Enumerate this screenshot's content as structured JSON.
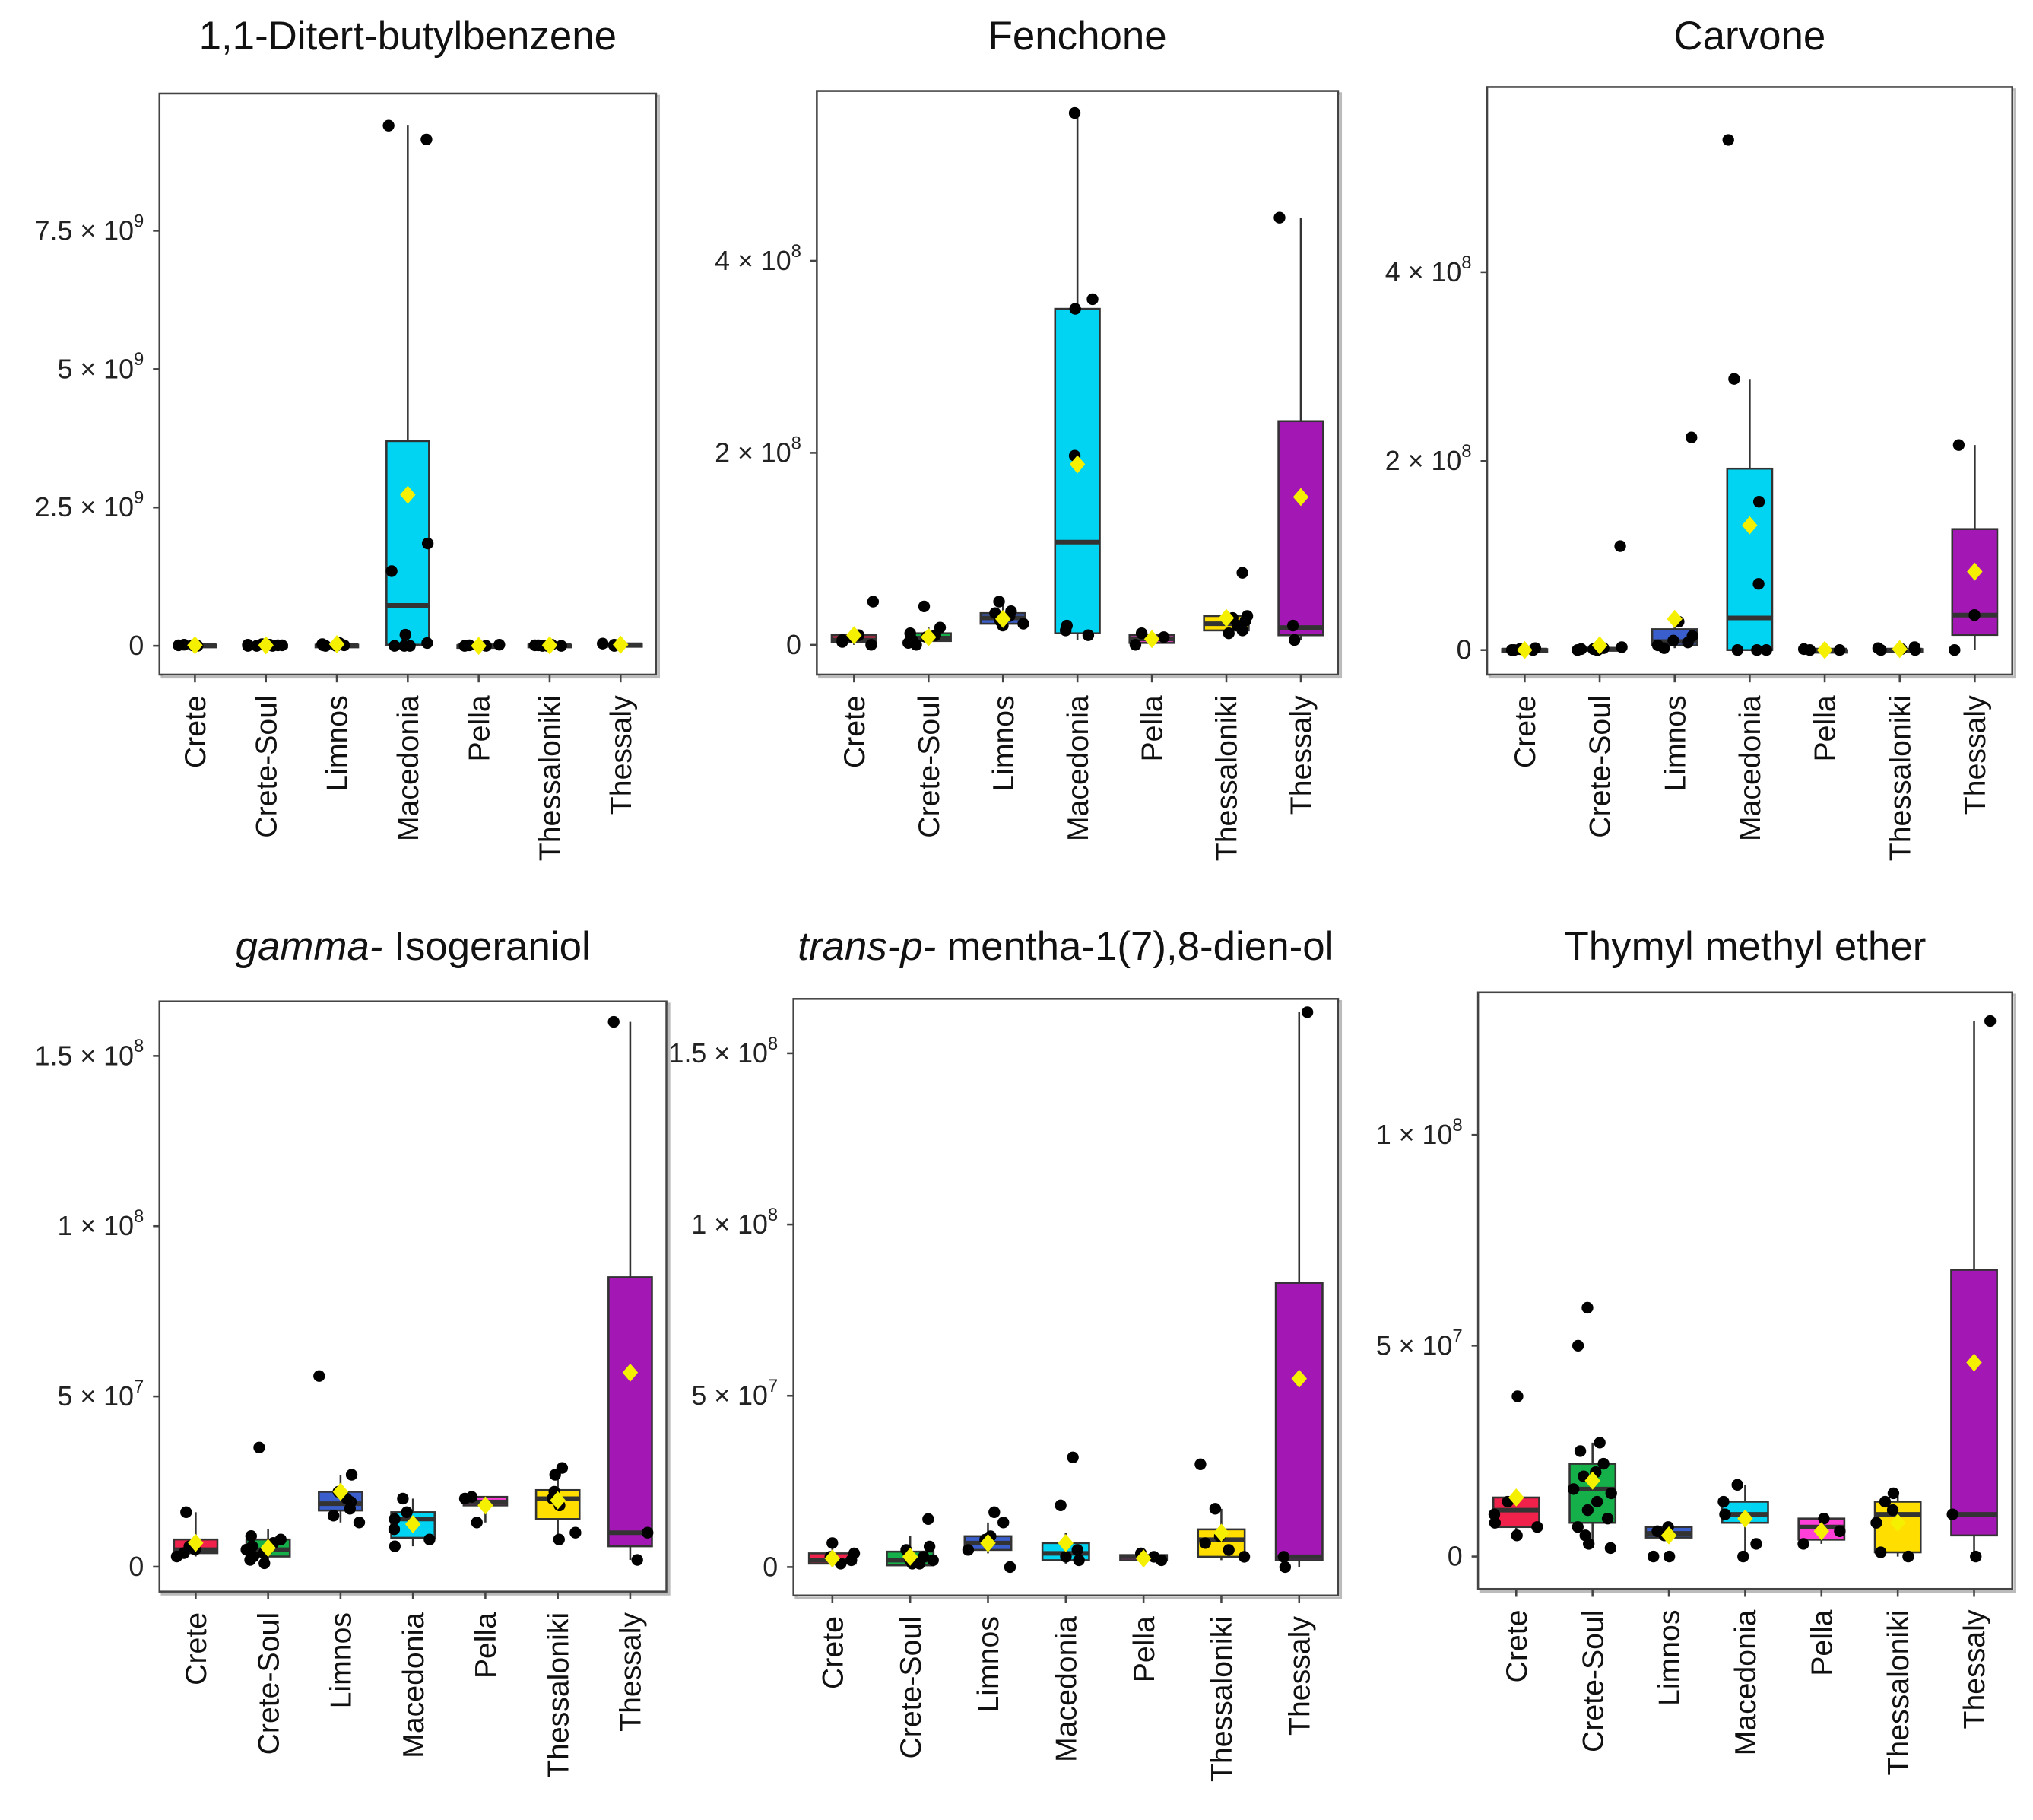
{
  "chart_data": {
    "type": "box",
    "categories": [
      "Crete",
      "Crete-Soul",
      "Limnos",
      "Macedonia",
      "Pella",
      "Thessaloniki",
      "Thessaly"
    ],
    "colors": [
      "#f0214a",
      "#15b04a",
      "#3a5fcd",
      "#00d4f2",
      "#ff3fd8",
      "#ffde00",
      "#a318b5"
    ],
    "mean_color": "#f5f000",
    "box_stats_order": [
      "whisker_low",
      "q1",
      "median",
      "q3",
      "whisker_high"
    ],
    "panels": [
      {
        "title_italic": "",
        "title": "1,1-Ditert-butylbenzene",
        "unit": 1000000000.0,
        "ylim": [
          -0.52,
          9.98
        ],
        "yticks": [
          {
            "v": 0,
            "m": "0",
            "e": ""
          },
          {
            "v": 2.5,
            "m": "2.5 × 10",
            "e": "9"
          },
          {
            "v": 5,
            "m": "5 × 10",
            "e": "9"
          },
          {
            "v": 7.5,
            "m": "7.5 × 10",
            "e": "9"
          }
        ],
        "groups": [
          {
            "box": [
              0,
              0,
              0.01,
              0.02,
              0.03
            ],
            "mean": 0.01,
            "points": [
              0,
              0,
              0.01,
              0.02,
              0.01,
              0
            ]
          },
          {
            "box": [
              0,
              0,
              0.01,
              0.02,
              0.04
            ],
            "mean": 0.01,
            "points": [
              0,
              0.01,
              0.02,
              0.03,
              0,
              0.01,
              0,
              0.02,
              0.01
            ]
          },
          {
            "box": [
              0,
              0,
              0.01,
              0.02,
              0.05
            ],
            "mean": 0.03,
            "points": [
              0,
              0.01,
              0.03,
              0.05,
              0,
              0.01
            ]
          },
          {
            "box": [
              0,
              0.02,
              0.73,
              3.7,
              9.4
            ],
            "mean": 2.73,
            "points": [
              9.4,
              9.15,
              1.85,
              1.35,
              0.2,
              0.05,
              0,
              0,
              0
            ]
          },
          {
            "box": [
              0,
              0,
              0,
              0.01,
              0.02
            ],
            "mean": 0,
            "points": [
              0,
              0.01,
              0,
              0.02
            ]
          },
          {
            "box": [
              0,
              0,
              0.01,
              0.02,
              0.03
            ],
            "mean": 0.01,
            "points": [
              0,
              0.01,
              0.02,
              0,
              0.01,
              0
            ]
          },
          {
            "box": [
              0,
              0,
              0.02,
              0.03,
              0.04
            ],
            "mean": 0.02,
            "points": [
              0,
              0.02,
              0.04
            ]
          }
        ]
      },
      {
        "title_italic": "",
        "title": "Fenchone",
        "unit": 100000000.0,
        "ylim": [
          -0.31,
          5.77
        ],
        "yticks": [
          {
            "v": 0,
            "m": "0",
            "e": ""
          },
          {
            "v": 2,
            "m": "2 × 10",
            "e": "8"
          },
          {
            "v": 4,
            "m": "4 × 10",
            "e": "8"
          }
        ],
        "groups": [
          {
            "box": [
              0,
              0.03,
              0.05,
              0.1,
              0.12
            ],
            "mean": 0.1,
            "points": [
              0.45,
              0.05,
              0,
              0.08,
              0.03,
              0.1
            ]
          },
          {
            "box": [
              0,
              0.04,
              0.07,
              0.12,
              0.18
            ],
            "mean": 0.08,
            "points": [
              0.4,
              0.18,
              0.1,
              0.05,
              0,
              0.08,
              0.12,
              0.02
            ]
          },
          {
            "box": [
              0.2,
              0.22,
              0.28,
              0.33,
              0.45
            ],
            "mean": 0.27,
            "points": [
              0.45,
              0.35,
              0.3,
              0.22,
              0.33,
              0.25,
              0.2
            ]
          },
          {
            "box": [
              0.05,
              0.12,
              1.07,
              3.5,
              5.54
            ],
            "mean": 1.88,
            "points": [
              5.54,
              3.6,
              3.5,
              1.97,
              0.2,
              0.15,
              0.1
            ]
          },
          {
            "box": [
              0,
              0.02,
              0.06,
              0.1,
              0.12
            ],
            "mean": 0.06,
            "points": [
              0,
              0.12,
              0.08
            ]
          },
          {
            "box": [
              0.1,
              0.15,
              0.22,
              0.3,
              0.35
            ],
            "mean": 0.28,
            "points": [
              0.75,
              0.3,
              0.25,
              0.15,
              0.2,
              0.28,
              0.12
            ]
          },
          {
            "box": [
              0.05,
              0.1,
              0.18,
              2.33,
              4.45
            ],
            "mean": 1.54,
            "points": [
              4.45,
              0.2,
              0.05
            ]
          }
        ]
      },
      {
        "title_italic": "",
        "title": "Carvone",
        "unit": 100000000.0,
        "ylim": [
          -0.26,
          5.96
        ],
        "yticks": [
          {
            "v": 0,
            "m": "0",
            "e": ""
          },
          {
            "v": 2,
            "m": "2 × 10",
            "e": "8"
          },
          {
            "v": 4,
            "m": "4 × 10",
            "e": "8"
          }
        ],
        "groups": [
          {
            "box": [
              0,
              0,
              0,
              0.01,
              0.02
            ],
            "mean": 0,
            "points": [
              0,
              0.01,
              0,
              0.02,
              0
            ]
          },
          {
            "box": [
              0,
              0,
              0.01,
              0.02,
              0.05
            ],
            "mean": 0.05,
            "points": [
              1.1,
              0,
              0.01,
              0.02,
              0,
              0.01,
              0.03,
              0
            ]
          },
          {
            "box": [
              0.02,
              0.05,
              0.09,
              0.22,
              0.3
            ],
            "mean": 0.33,
            "points": [
              2.25,
              0.3,
              0.1,
              0.05,
              0.08,
              0.15,
              0.02
            ]
          },
          {
            "box": [
              0,
              0,
              0.34,
              1.92,
              2.87
            ],
            "mean": 1.32,
            "points": [
              5.4,
              2.87,
              1.57,
              0.7,
              0,
              0,
              0
            ]
          },
          {
            "box": [
              0,
              0,
              0,
              0,
              0.01
            ],
            "mean": 0,
            "points": [
              0,
              0,
              0.01
            ]
          },
          {
            "box": [
              0,
              0,
              0,
              0.01,
              0.03
            ],
            "mean": 0.01,
            "points": [
              0,
              0.02,
              0.01,
              0.03,
              0
            ]
          },
          {
            "box": [
              0,
              0.16,
              0.37,
              1.28,
              2.17
            ],
            "mean": 0.83,
            "points": [
              2.17,
              0.37,
              0
            ]
          }
        ]
      },
      {
        "title_italic": "gamma-",
        "title": " Isogeraniol",
        "unit": 10000000.0,
        "ylim": [
          -0.73,
          16.6
        ],
        "yticks": [
          {
            "v": 0,
            "m": "0",
            "e": ""
          },
          {
            "v": 5,
            "m": "5 × 10",
            "e": "7"
          },
          {
            "v": 10,
            "m": "1 × 10",
            "e": "8"
          },
          {
            "v": 15,
            "m": "1.5 × 10",
            "e": "8"
          }
        ],
        "groups": [
          {
            "box": [
              0.3,
              0.4,
              0.5,
              0.8,
              1.6
            ],
            "mean": 0.7,
            "points": [
              1.6,
              0.5,
              0.3,
              0.6,
              0.4
            ]
          },
          {
            "box": [
              0.1,
              0.3,
              0.5,
              0.8,
              1.1
            ],
            "mean": 0.55,
            "points": [
              3.5,
              0.8,
              0.6,
              0.3,
              0.5,
              0.7,
              0.2,
              0.4,
              0.9,
              0.5,
              0.1
            ]
          },
          {
            "box": [
              1.3,
              1.65,
              1.85,
              2.2,
              2.7
            ],
            "mean": 2.2,
            "points": [
              5.6,
              2.7,
              2.2,
              1.9,
              1.5,
              1.3,
              1.7,
              2.0
            ]
          },
          {
            "box": [
              0.6,
              0.85,
              1.4,
              1.6,
              2.0
            ],
            "mean": 1.25,
            "points": [
              2.0,
              1.6,
              1.4,
              0.8,
              0.6,
              1.1
            ]
          },
          {
            "box": [
              1.3,
              1.8,
              1.9,
              2.05,
              2.05
            ],
            "mean": 1.8,
            "points": [
              2.05,
              1.3,
              2.0
            ]
          },
          {
            "box": [
              0.8,
              1.4,
              2.0,
              2.25,
              2.9
            ],
            "mean": 1.95,
            "points": [
              2.9,
              2.7,
              2.0,
              1.8,
              1.0,
              0.8,
              2.2
            ]
          },
          {
            "box": [
              0.2,
              0.6,
              1.0,
              8.5,
              16.0
            ],
            "mean": 5.7,
            "points": [
              16.0,
              1.0,
              0.2
            ]
          }
        ]
      },
      {
        "title_italic": "trans-p-",
        "title": " mentha-1(7),8-dien-ol",
        "unit": 10000000.0,
        "ylim": [
          -0.83,
          16.59
        ],
        "yticks": [
          {
            "v": 0,
            "m": "0",
            "e": ""
          },
          {
            "v": 5,
            "m": "5 × 10",
            "e": "7"
          },
          {
            "v": 10,
            "m": "1 × 10",
            "e": "8"
          },
          {
            "v": 15,
            "m": "1.5 × 10",
            "e": "8"
          }
        ],
        "groups": [
          {
            "box": [
              0,
              0.1,
              0.2,
              0.4,
              0.7
            ],
            "mean": 0.25,
            "points": [
              0.7,
              0.2,
              0.1,
              0.3,
              0.4
            ]
          },
          {
            "box": [
              0,
              0.05,
              0.2,
              0.45,
              0.9
            ],
            "mean": 0.3,
            "points": [
              1.4,
              0.5,
              0.2,
              0.1,
              0.3,
              0.6,
              0.1,
              0.2
            ]
          },
          {
            "box": [
              0.4,
              0.5,
              0.7,
              0.9,
              1.3
            ],
            "mean": 0.7,
            "points": [
              1.6,
              1.3,
              0.8,
              0.5,
              0,
              0.9
            ]
          },
          {
            "box": [
              0.1,
              0.2,
              0.4,
              0.7,
              1.0
            ],
            "mean": 0.7,
            "points": [
              3.2,
              1.8,
              0.5,
              0.2,
              0.3
            ]
          },
          {
            "box": [
              0.1,
              0.2,
              0.3,
              0.35,
              0.4
            ],
            "mean": 0.25,
            "points": [
              0.4,
              0.2,
              0.3
            ]
          },
          {
            "box": [
              0.2,
              0.3,
              0.8,
              1.1,
              1.7
            ],
            "mean": 1.0,
            "points": [
              3.0,
              1.7,
              0.9,
              0.3,
              0.5,
              0.7
            ]
          },
          {
            "box": [
              0,
              0.2,
              0.3,
              8.3,
              16.2
            ],
            "mean": 5.5,
            "points": [
              16.2,
              0.3,
              0
            ]
          }
        ]
      },
      {
        "title_italic": "",
        "title": "Thymyl methyl ether",
        "unit": 10000000.0,
        "ylim": [
          -0.77,
          13.38
        ],
        "yticks": [
          {
            "v": 0,
            "m": "0",
            "e": ""
          },
          {
            "v": 5,
            "m": "5 × 10",
            "e": "7"
          },
          {
            "v": 10,
            "m": "1 × 10",
            "e": "8"
          }
        ],
        "groups": [
          {
            "box": [
              0.5,
              0.7,
              1.1,
              1.4,
              1.4
            ],
            "mean": 1.4,
            "points": [
              3.8,
              1.3,
              1.0,
              0.7,
              0.5,
              0.8
            ]
          },
          {
            "box": [
              0.2,
              0.8,
              1.6,
              2.2,
              2.7
            ],
            "mean": 1.8,
            "points": [
              5.9,
              5.0,
              2.7,
              2.5,
              2.2,
              1.9,
              1.5,
              1.3,
              1.1,
              0.9,
              0.7,
              0.5,
              0.3,
              0.2,
              2.0,
              1.6
            ]
          },
          {
            "box": [
              0.4,
              0.45,
              0.55,
              0.7,
              0.8
            ],
            "mean": 0.5,
            "points": [
              0,
              0.7,
              0.6,
              0.5,
              0
            ]
          },
          {
            "box": [
              0,
              0.8,
              1.0,
              1.3,
              1.7
            ],
            "mean": 0.9,
            "points": [
              1.7,
              1.3,
              1.0,
              0.3,
              0
            ]
          },
          {
            "box": [
              0.3,
              0.4,
              0.7,
              0.9,
              0.9
            ],
            "mean": 0.6,
            "points": [
              0.9,
              0.6,
              0.3
            ]
          },
          {
            "box": [
              0,
              0.1,
              1.0,
              1.3,
              1.5
            ],
            "mean": 0.8,
            "points": [
              1.5,
              1.3,
              1.1,
              0.8,
              0.1,
              0
            ]
          },
          {
            "box": [
              0,
              0.5,
              1.0,
              6.8,
              12.7
            ],
            "mean": 4.6,
            "points": [
              12.7,
              1.0,
              0
            ]
          }
        ]
      }
    ]
  }
}
